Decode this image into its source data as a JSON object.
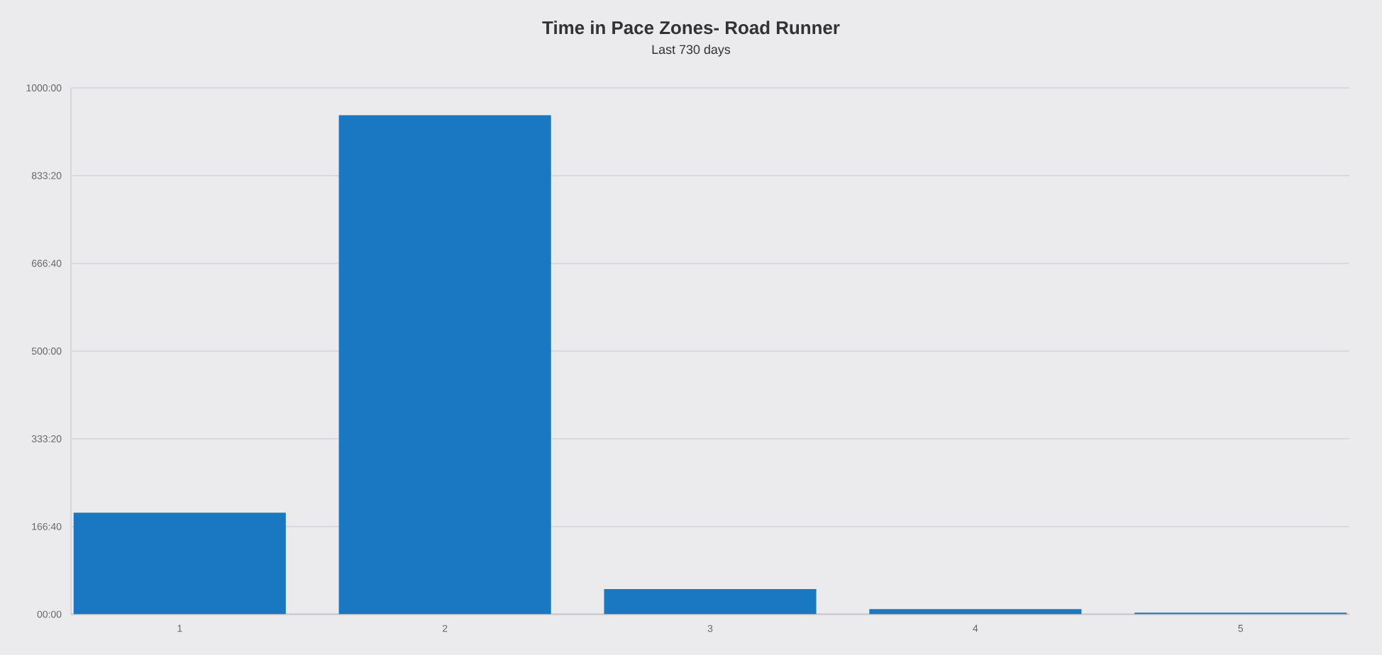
{
  "chart_data": {
    "type": "bar",
    "title": "Time in Pace Zones- Road Runner",
    "subtitle": "Last 730 days",
    "categories": [
      "1",
      "2",
      "3",
      "4",
      "5"
    ],
    "values": [
      193,
      948,
      48,
      10,
      3
    ],
    "color": "#1a78c2",
    "ylim": [
      0,
      1000
    ],
    "yticks": [
      {
        "value": 0,
        "label": "00:00"
      },
      {
        "value": 166.667,
        "label": "166:40"
      },
      {
        "value": 333.333,
        "label": "333:20"
      },
      {
        "value": 500,
        "label": "500:00"
      },
      {
        "value": 666.667,
        "label": "666:40"
      },
      {
        "value": 833.333,
        "label": "833:20"
      },
      {
        "value": 1000,
        "label": "1000:00"
      }
    ],
    "grid": "y"
  }
}
